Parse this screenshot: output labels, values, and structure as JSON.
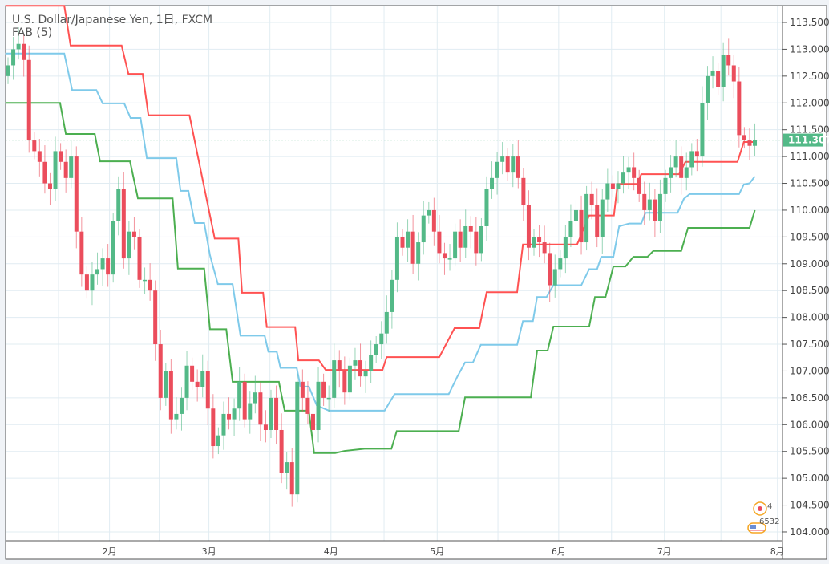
{
  "header": {
    "title": "U.S. Dollar/Japanese Yen, 1日, FXCM",
    "indicator": "FAB (5)"
  },
  "current_price": {
    "value": 111.307,
    "label": "111.307",
    "color": "#53b987"
  },
  "badges": {
    "events": "4",
    "count": "6532"
  },
  "colors": {
    "up": "#53b987",
    "down": "#eb4d5c",
    "upper": "#ff5252",
    "middle": "#7fcaea",
    "lower": "#4caf50",
    "grid": "#e1ecf2"
  },
  "chart_data": {
    "type": "candlestick",
    "title": "U.S. Dollar/Japanese Yen, 1日, FXCM",
    "ylim": [
      103.8,
      113.81
    ],
    "xlim": [
      -0.5,
      148
    ],
    "y_ticks": [
      "113.500",
      "113.000",
      "112.500",
      "112.000",
      "111.500",
      "111.000",
      "110.500",
      "110.000",
      "109.500",
      "109.000",
      "108.500",
      "108.000",
      "107.500",
      "107.000",
      "106.500",
      "106.000",
      "105.500",
      "105.000",
      "104.500",
      "104.000"
    ],
    "x_ticks": [
      {
        "label": "2月",
        "index": 19.3
      },
      {
        "label": "3月",
        "index": 38.2
      },
      {
        "label": "4月",
        "index": 61.4
      },
      {
        "label": "5月",
        "index": 81.6
      },
      {
        "label": "6月",
        "index": 104.7
      },
      {
        "label": "7月",
        "index": 124.8
      },
      {
        "label": "8月",
        "index": 146.3
      }
    ],
    "first_open": 112.5,
    "closes": [
      112.7,
      113.0,
      113.1,
      112.8,
      111.3,
      111.1,
      110.9,
      110.5,
      110.4,
      111.1,
      110.9,
      110.6,
      111.0,
      109.6,
      108.8,
      108.5,
      108.8,
      108.9,
      109.1,
      108.8,
      109.8,
      110.4,
      109.1,
      109.6,
      109.5,
      108.7,
      108.7,
      108.5,
      107.5,
      106.5,
      107.0,
      106.1,
      106.2,
      106.5,
      107.1,
      106.8,
      106.7,
      107.0,
      106.3,
      105.6,
      105.8,
      106.2,
      106.1,
      106.3,
      106.8,
      106.1,
      106.4,
      106.6,
      106.0,
      105.9,
      106.5,
      105.9,
      105.1,
      105.3,
      104.7,
      106.8,
      106.5,
      106.2,
      105.9,
      106.8,
      106.5,
      106.5,
      107.2,
      107.0,
      106.6,
      107.1,
      107.2,
      106.9,
      107.0,
      107.3,
      107.5,
      107.7,
      108.1,
      108.7,
      109.5,
      109.3,
      109.6,
      109.0,
      109.4,
      109.9,
      110.0,
      109.6,
      109.2,
      109.1,
      109.1,
      109.6,
      109.3,
      109.7,
      109.6,
      109.2,
      109.7,
      110.4,
      110.6,
      110.9,
      111.0,
      110.7,
      111.0,
      110.6,
      110.1,
      109.3,
      109.5,
      109.4,
      109.2,
      108.6,
      108.9,
      109.1,
      109.5,
      109.8,
      110.0,
      109.4,
      110.3,
      110.1,
      109.5,
      110.2,
      110.5,
      110.4,
      110.5,
      110.7,
      110.8,
      110.6,
      110.3,
      110.0,
      110.2,
      109.8,
      110.3,
      110.6,
      110.8,
      111.0,
      110.6,
      110.8,
      111.1,
      111.0,
      112.0,
      112.5,
      112.6,
      112.3,
      112.9,
      112.7,
      112.4,
      111.4,
      111.3,
      111.2,
      111.307
    ],
    "series": [
      {
        "name": "FAB upper",
        "color": "#ff5252",
        "points": [
          [
            -0.5,
            113.81
          ],
          [
            10.7,
            113.81
          ],
          [
            11.9,
            113.07
          ],
          [
            21.6,
            113.07
          ],
          [
            22.9,
            112.54
          ],
          [
            25.6,
            112.54
          ],
          [
            26.7,
            111.77
          ],
          [
            34.5,
            111.77
          ],
          [
            39.3,
            109.47
          ],
          [
            43.8,
            109.47
          ],
          [
            44.5,
            108.46
          ],
          [
            48.5,
            108.46
          ],
          [
            49.2,
            107.82
          ],
          [
            54.6,
            107.82
          ],
          [
            55.2,
            107.2
          ],
          [
            59.1,
            107.2
          ],
          [
            60.4,
            107.02
          ],
          [
            71.2,
            107.02
          ],
          [
            72,
            107.26
          ],
          [
            82,
            107.26
          ],
          [
            84.9,
            107.8
          ],
          [
            89.6,
            107.8
          ],
          [
            91,
            108.47
          ],
          [
            96.8,
            108.47
          ],
          [
            97.9,
            109.36
          ],
          [
            108.2,
            109.36
          ],
          [
            110.5,
            109.9
          ],
          [
            115.2,
            109.9
          ],
          [
            115.9,
            110.49
          ],
          [
            119.7,
            110.49
          ],
          [
            120.4,
            110.67
          ],
          [
            127.6,
            110.67
          ],
          [
            128.8,
            110.9
          ],
          [
            138.7,
            110.9
          ],
          [
            139.9,
            111.27
          ],
          [
            142,
            111.27
          ]
        ]
      },
      {
        "name": "FAB middle",
        "color": "#7fcaea",
        "points": [
          [
            -0.5,
            112.92
          ],
          [
            10.7,
            112.92
          ],
          [
            12.2,
            112.24
          ],
          [
            16.8,
            112.24
          ],
          [
            18,
            111.99
          ],
          [
            22.1,
            111.99
          ],
          [
            23.3,
            111.72
          ],
          [
            25.2,
            111.72
          ],
          [
            26.4,
            110.97
          ],
          [
            32,
            110.97
          ],
          [
            32.8,
            110.36
          ],
          [
            34.3,
            110.36
          ],
          [
            35.5,
            109.76
          ],
          [
            37.3,
            109.76
          ],
          [
            38.4,
            109.16
          ],
          [
            39.9,
            108.62
          ],
          [
            42.7,
            108.62
          ],
          [
            44.2,
            107.66
          ],
          [
            48.8,
            107.66
          ],
          [
            49.5,
            107.36
          ],
          [
            51.1,
            107.36
          ],
          [
            51.8,
            107.06
          ],
          [
            54.9,
            107.06
          ],
          [
            55.6,
            106.71
          ],
          [
            57.2,
            106.71
          ],
          [
            58.7,
            106.36
          ],
          [
            61,
            106.26
          ],
          [
            71.6,
            106.26
          ],
          [
            73.5,
            106.57
          ],
          [
            83.8,
            106.57
          ],
          [
            85.4,
            106.89
          ],
          [
            86.9,
            107.16
          ],
          [
            88.4,
            107.16
          ],
          [
            89.9,
            107.49
          ],
          [
            96.8,
            107.49
          ],
          [
            97.9,
            107.93
          ],
          [
            99.8,
            107.93
          ],
          [
            100.6,
            108.38
          ],
          [
            102.4,
            108.38
          ],
          [
            103.7,
            108.6
          ],
          [
            109,
            108.6
          ],
          [
            110.5,
            108.9
          ],
          [
            112,
            108.9
          ],
          [
            112.8,
            109.13
          ],
          [
            115.1,
            109.13
          ],
          [
            116.2,
            109.7
          ],
          [
            118.1,
            109.75
          ],
          [
            120.4,
            109.75
          ],
          [
            121.2,
            109.95
          ],
          [
            127.3,
            109.95
          ],
          [
            128.5,
            110.21
          ],
          [
            129.6,
            110.3
          ],
          [
            139,
            110.3
          ],
          [
            139.9,
            110.48
          ],
          [
            141,
            110.5
          ],
          [
            142,
            110.63
          ]
        ]
      },
      {
        "name": "FAB lower",
        "color": "#4caf50",
        "points": [
          [
            -0.5,
            112.0
          ],
          [
            9.9,
            112.0
          ],
          [
            11,
            111.42
          ],
          [
            16.5,
            111.42
          ],
          [
            17.5,
            110.91
          ],
          [
            23.2,
            110.91
          ],
          [
            24.7,
            110.22
          ],
          [
            31.3,
            110.22
          ],
          [
            32.3,
            108.91
          ],
          [
            37.3,
            108.91
          ],
          [
            38.4,
            107.78
          ],
          [
            41.5,
            107.78
          ],
          [
            42.7,
            106.8
          ],
          [
            51.5,
            106.8
          ],
          [
            52.6,
            106.26
          ],
          [
            57.2,
            106.26
          ],
          [
            58.2,
            105.47
          ],
          [
            62.2,
            105.47
          ],
          [
            64,
            105.51
          ],
          [
            67.8,
            105.55
          ],
          [
            72.9,
            105.55
          ],
          [
            73.9,
            105.88
          ],
          [
            85.7,
            105.88
          ],
          [
            86.9,
            106.51
          ],
          [
            99.4,
            106.51
          ],
          [
            100.6,
            107.38
          ],
          [
            102.6,
            107.38
          ],
          [
            103.7,
            107.83
          ],
          [
            110.5,
            107.83
          ],
          [
            111.6,
            108.38
          ],
          [
            113.6,
            108.38
          ],
          [
            115.1,
            108.95
          ],
          [
            117.4,
            108.95
          ],
          [
            118.9,
            109.13
          ],
          [
            121.6,
            109.13
          ],
          [
            122.7,
            109.24
          ],
          [
            128,
            109.24
          ],
          [
            129.3,
            109.67
          ],
          [
            141,
            109.67
          ],
          [
            142,
            110.0
          ]
        ]
      }
    ]
  }
}
